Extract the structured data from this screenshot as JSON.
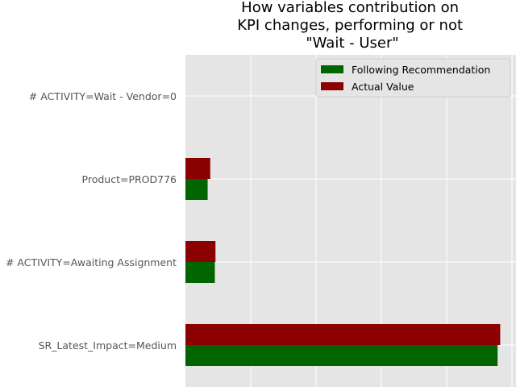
{
  "chart_data": {
    "type": "bar",
    "orientation": "horizontal",
    "title": [
      "How variables contribution on",
      "KPI changes, performing or not",
      "\"Wait - User\""
    ],
    "categories": [
      "SR_Latest_Impact=Medium",
      "# ACTIVITY=Awaiting Assignment",
      "Product=PROD776",
      "# ACTIVITY=Wait - Vendor=0"
    ],
    "series": [
      {
        "name": "Following Recommendation",
        "color": "#006400",
        "values": [
          0.478,
          0.045,
          0.034,
          0.0
        ]
      },
      {
        "name": "Actual Value",
        "color": "#8b0000",
        "values": [
          0.482,
          0.046,
          0.038,
          0.0
        ]
      }
    ],
    "xlim": [
      0,
      0.5
    ],
    "grid": true,
    "legend_position": "top-right",
    "background": "#e5e5e5"
  }
}
